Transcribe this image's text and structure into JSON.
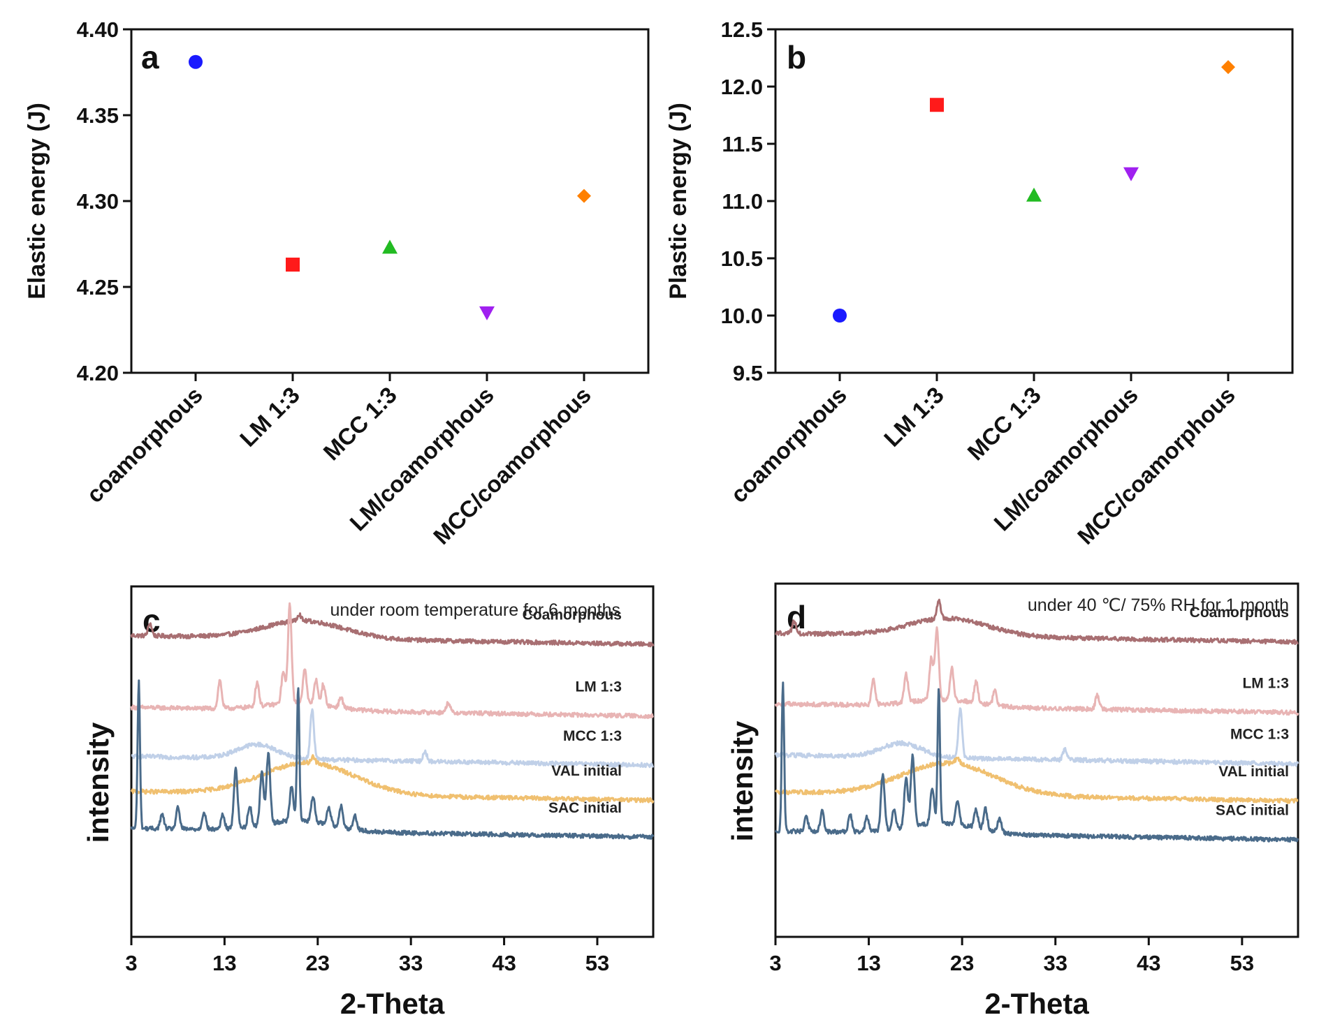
{
  "chart_data": [
    {
      "panel": "a",
      "type": "scatter",
      "title": "",
      "xlabel": "",
      "ylabel": "Elastic energy (J)",
      "ylim": [
        4.2,
        4.4
      ],
      "yticks": [
        "4.20",
        "4.25",
        "4.30",
        "4.35",
        "4.40"
      ],
      "categories": [
        "coamorphous",
        "LM 1:3",
        "MCC 1:3",
        "LM/coamorphous",
        "MCC/coamorphous"
      ],
      "values": [
        4.381,
        4.263,
        4.273,
        4.235,
        4.303
      ],
      "markers": [
        "circle",
        "square",
        "triangle-up",
        "triangle-down",
        "diamond"
      ],
      "colors": [
        "#1a1aff",
        "#ff1a1a",
        "#22bb22",
        "#a020f0",
        "#ff8000"
      ]
    },
    {
      "panel": "b",
      "type": "scatter",
      "title": "",
      "xlabel": "",
      "ylabel": "Plastic energy (J)",
      "ylim": [
        9.5,
        12.5
      ],
      "yticks": [
        "9.5",
        "10.0",
        "10.5",
        "11.0",
        "11.5",
        "12.0",
        "12.5"
      ],
      "categories": [
        "coamorphous",
        "LM 1:3",
        "MCC 1:3",
        "LM/coamorphous",
        "MCC/coamorphous"
      ],
      "values": [
        10.0,
        11.84,
        11.05,
        11.24,
        12.17
      ],
      "markers": [
        "circle",
        "square",
        "triangle-up",
        "triangle-down",
        "diamond"
      ],
      "colors": [
        "#1a1aff",
        "#ff1a1a",
        "#22bb22",
        "#a020f0",
        "#ff8000"
      ]
    },
    {
      "panel": "c",
      "type": "line",
      "annotation": "under room temperature for 6 months",
      "xlabel": "2-Theta",
      "ylabel": "intensity",
      "xlim": [
        3,
        59
      ],
      "xticks": [
        "3",
        "13",
        "23",
        "33",
        "43",
        "53"
      ],
      "series": [
        {
          "name": "Coamorphous",
          "color": "#a86f72",
          "baseline": 0.86,
          "hump": {
            "center": 21.5,
            "width": 6,
            "height": 0.05
          },
          "peaks": [
            [
              5,
              0.035
            ],
            [
              21,
              0.02
            ]
          ]
        },
        {
          "name": "LM 1:3",
          "color": "#e8b4b4",
          "baseline": 0.655,
          "hump": {
            "center": 21,
            "width": 5,
            "height": 0.02
          },
          "peaks": [
            [
              12.5,
              0.08
            ],
            [
              16.5,
              0.07
            ],
            [
              19.3,
              0.09
            ],
            [
              20.0,
              0.28
            ],
            [
              21.6,
              0.1
            ],
            [
              22.8,
              0.07
            ],
            [
              23.6,
              0.06
            ],
            [
              25.5,
              0.03
            ],
            [
              37,
              0.03
            ]
          ]
        },
        {
          "name": "MCC 1:3",
          "color": "#c0d0e8",
          "baseline": 0.515,
          "hump": {
            "center": 16.5,
            "width": 3,
            "height": 0.04
          },
          "peaks": [
            [
              22.4,
              0.14
            ],
            [
              34.5,
              0.03
            ]
          ]
        },
        {
          "name": "VAL initial",
          "color": "#f0c070",
          "baseline": 0.415,
          "hump": {
            "center": 22,
            "width": 7,
            "height": 0.09
          },
          "peaks": [
            [
              22.5,
              0.02
            ]
          ]
        },
        {
          "name": "SAC initial",
          "color": "#4a6b8a",
          "baseline": 0.31,
          "hump": {
            "center": 21,
            "width": 5,
            "height": 0.03
          },
          "peaks": [
            [
              3.8,
              0.42
            ],
            [
              6.3,
              0.04
            ],
            [
              8.0,
              0.06
            ],
            [
              10.8,
              0.05
            ],
            [
              12.8,
              0.04
            ],
            [
              14.2,
              0.17
            ],
            [
              15.7,
              0.06
            ],
            [
              17.0,
              0.15
            ],
            [
              17.7,
              0.2
            ],
            [
              20.2,
              0.1
            ],
            [
              20.9,
              0.38
            ],
            [
              22.5,
              0.07
            ],
            [
              24.2,
              0.05
            ],
            [
              25.5,
              0.06
            ],
            [
              27.0,
              0.04
            ]
          ]
        }
      ]
    },
    {
      "panel": "d",
      "type": "line",
      "annotation": "under 40 ℃/ 75% RH for 1 month",
      "xlabel": "2-Theta",
      "ylabel": "intensity",
      "xlim": [
        3,
        59
      ],
      "xticks": [
        "3",
        "13",
        "23",
        "33",
        "43",
        "53"
      ],
      "series": [
        {
          "name": "Coamorphous",
          "color": "#a86f72",
          "baseline": 0.86,
          "hump": {
            "center": 21.5,
            "width": 6,
            "height": 0.05
          },
          "peaks": [
            [
              5,
              0.035
            ],
            [
              20.5,
              0.05
            ]
          ]
        },
        {
          "name": "LM 1:3",
          "color": "#e8b4b4",
          "baseline": 0.66,
          "hump": {
            "center": 21,
            "width": 5,
            "height": 0.02
          },
          "peaks": [
            [
              13.5,
              0.07
            ],
            [
              17.0,
              0.08
            ],
            [
              19.7,
              0.12
            ],
            [
              20.3,
              0.2
            ],
            [
              21.9,
              0.09
            ],
            [
              24.5,
              0.06
            ],
            [
              26.5,
              0.04
            ],
            [
              37.5,
              0.04
            ]
          ]
        },
        {
          "name": "MCC 1:3",
          "color": "#c0d0e8",
          "baseline": 0.515,
          "hump": {
            "center": 16.5,
            "width": 3,
            "height": 0.04
          },
          "peaks": [
            [
              22.8,
              0.14
            ],
            [
              34.0,
              0.03
            ]
          ]
        },
        {
          "name": "VAL initial",
          "color": "#f0c070",
          "baseline": 0.41,
          "hump": {
            "center": 21.5,
            "width": 7,
            "height": 0.09
          },
          "peaks": [
            [
              22.5,
              0.02
            ]
          ]
        },
        {
          "name": "SAC initial",
          "color": "#4a6b8a",
          "baseline": 0.3,
          "hump": {
            "center": 21,
            "width": 5,
            "height": 0.03
          },
          "peaks": [
            [
              3.8,
              0.42
            ],
            [
              6.3,
              0.04
            ],
            [
              8.0,
              0.06
            ],
            [
              11.0,
              0.05
            ],
            [
              12.8,
              0.04
            ],
            [
              14.5,
              0.16
            ],
            [
              15.7,
              0.06
            ],
            [
              17.0,
              0.14
            ],
            [
              17.7,
              0.2
            ],
            [
              19.8,
              0.1
            ],
            [
              20.5,
              0.38
            ],
            [
              22.5,
              0.07
            ],
            [
              24.5,
              0.05
            ],
            [
              25.5,
              0.06
            ],
            [
              27.0,
              0.04
            ]
          ]
        }
      ]
    }
  ]
}
